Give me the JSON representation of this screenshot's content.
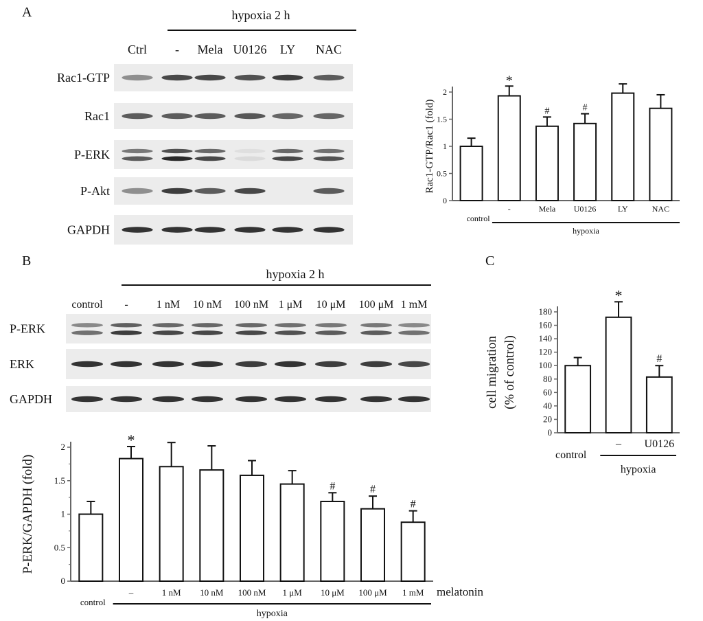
{
  "panels": {
    "A": "A",
    "B": "B",
    "C": "C"
  },
  "blotA": {
    "header": "hypoxia 2 h",
    "lanes": [
      "Ctrl",
      "-",
      "Mela",
      "U0126",
      "LY",
      "NAC"
    ],
    "rows": [
      {
        "label": "Rac1-GTP",
        "intensity": [
          0.45,
          0.8,
          0.8,
          0.75,
          0.85,
          0.7
        ],
        "doublet": false
      },
      {
        "label": "Rac1",
        "intensity": [
          0.7,
          0.7,
          0.7,
          0.72,
          0.65,
          0.65
        ],
        "doublet": false
      },
      {
        "label": "P-ERK",
        "intensity": [
          0.7,
          0.95,
          0.8,
          0.08,
          0.8,
          0.75
        ],
        "doublet": true
      },
      {
        "label": "P-Akt",
        "intensity": [
          0.45,
          0.85,
          0.7,
          0.8,
          0.0,
          0.7
        ],
        "doublet": false
      },
      {
        "label": "GAPDH",
        "intensity": [
          0.9,
          0.9,
          0.9,
          0.9,
          0.9,
          0.9
        ],
        "doublet": false
      }
    ]
  },
  "blotB": {
    "header": "hypoxia 2 h",
    "lanes": [
      "control",
      "-",
      "1 nM",
      "10 nM",
      "100 nM",
      "1 μM",
      "10 μM",
      "100 μM",
      "1 mM"
    ],
    "rows": [
      {
        "label": "P-ERK",
        "intensity": [
          0.6,
          0.85,
          0.8,
          0.8,
          0.8,
          0.75,
          0.7,
          0.7,
          0.6
        ],
        "doublet": true
      },
      {
        "label": "ERK",
        "intensity": [
          0.9,
          0.9,
          0.9,
          0.9,
          0.85,
          0.9,
          0.85,
          0.85,
          0.8
        ],
        "doublet": false
      },
      {
        "label": "GAPDH",
        "intensity": [
          0.9,
          0.9,
          0.9,
          0.9,
          0.9,
          0.9,
          0.9,
          0.9,
          0.9
        ],
        "doublet": false
      }
    ]
  },
  "chart_data": [
    {
      "id": "A",
      "type": "bar",
      "ylabel": "Rac1-GTP/Rac1 (fold)",
      "ylim": [
        0,
        2
      ],
      "yticks": [
        0,
        0.5,
        1,
        1.5,
        2
      ],
      "ytick_labels": [
        "0",
        "0.5",
        "1",
        "1.5",
        "2"
      ],
      "categories": [
        "control",
        "-",
        "Mela",
        "U0126",
        "LY",
        "NAC"
      ],
      "values": [
        1.0,
        1.93,
        1.37,
        1.42,
        1.98,
        1.7
      ],
      "errors": [
        0.15,
        0.18,
        0.17,
        0.18,
        0.17,
        0.25
      ],
      "annotations": [
        "",
        "*",
        "#",
        "#",
        "",
        ""
      ],
      "group_label": "hypoxia",
      "group_start": 1
    },
    {
      "id": "B",
      "type": "bar",
      "ylabel": "P-ERK/GAPDH (fold)",
      "ylim": [
        0,
        2
      ],
      "yticks": [
        0,
        0.5,
        1,
        1.5,
        2
      ],
      "ytick_labels": [
        "0",
        "0.5",
        "1",
        "1.5",
        "2"
      ],
      "categories": [
        "control",
        "–",
        "1 nM",
        "10 nM",
        "100 nM",
        "1 μM",
        "10 μM",
        "100 μM",
        "1 mM"
      ],
      "values": [
        1.0,
        1.83,
        1.71,
        1.66,
        1.58,
        1.45,
        1.19,
        1.08,
        0.88
      ],
      "errors": [
        0.19,
        0.18,
        0.36,
        0.36,
        0.22,
        0.2,
        0.13,
        0.19,
        0.17
      ],
      "annotations": [
        "",
        "*",
        "",
        "",
        "",
        "",
        "#",
        "#",
        "#"
      ],
      "group_label": "hypoxia",
      "group_start": 1,
      "suffix_label": "melatonin"
    },
    {
      "id": "C",
      "type": "bar",
      "ylabel_lines": [
        "cell migration",
        "(% of control)"
      ],
      "ylim": [
        0,
        180
      ],
      "yticks": [
        0,
        20,
        40,
        60,
        80,
        100,
        120,
        140,
        160,
        180
      ],
      "ytick_labels": [
        "0",
        "20",
        "40",
        "60",
        "80",
        "100",
        "120",
        "140",
        "160",
        "180"
      ],
      "categories": [
        "control",
        "–",
        "U0126"
      ],
      "values": [
        100,
        172,
        83
      ],
      "errors": [
        12,
        23,
        17
      ],
      "annotations": [
        "",
        "*",
        "#"
      ],
      "group_label": "hypoxia",
      "group_start": 1
    }
  ]
}
